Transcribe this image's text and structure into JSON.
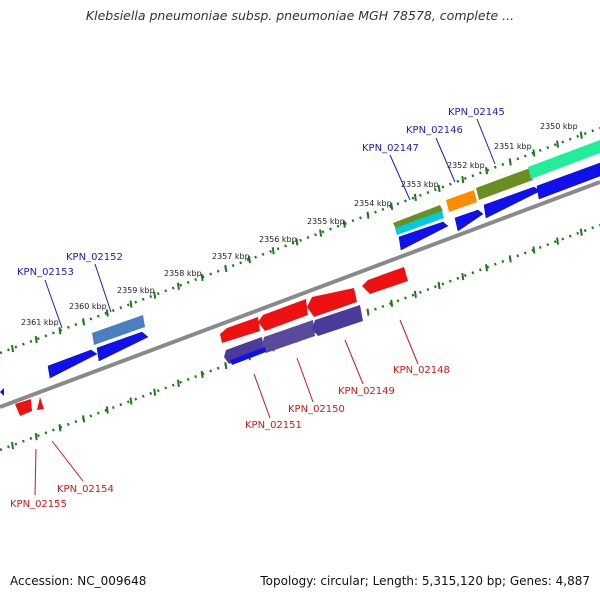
{
  "title": "Klebsiella pneumoniae subsp. pneumoniae MGH 78578, complete ...",
  "footer": {
    "accession": "Accession: NC_009648",
    "summary": "Topology: circular; Length: 5,315,120 bp; Genes: 4,887"
  },
  "colors": {
    "forward_label": "#1a1acc",
    "reverse_label": "#dd1111",
    "backbone": "#808080",
    "tick": "#1a7a1a"
  },
  "scale_labels": [
    "2361 kbp",
    "2360 kbp",
    "2359 kbp",
    "2358 kbp",
    "2357 kbp",
    "2356 kbp",
    "2355 kbp",
    "2354 kbp",
    "2353 kbp",
    "2352 kbp",
    "2351 kbp",
    "2350 kbp"
  ],
  "forward_genes": [
    "KPN_02153",
    "KPN_02152",
    "KPN_02147",
    "KPN_02146",
    "KPN_02145"
  ],
  "reverse_genes": [
    "KPN_02155",
    "KPN_02154",
    "KPN_02151",
    "KPN_02150",
    "KPN_02149",
    "KPN_02148"
  ]
}
